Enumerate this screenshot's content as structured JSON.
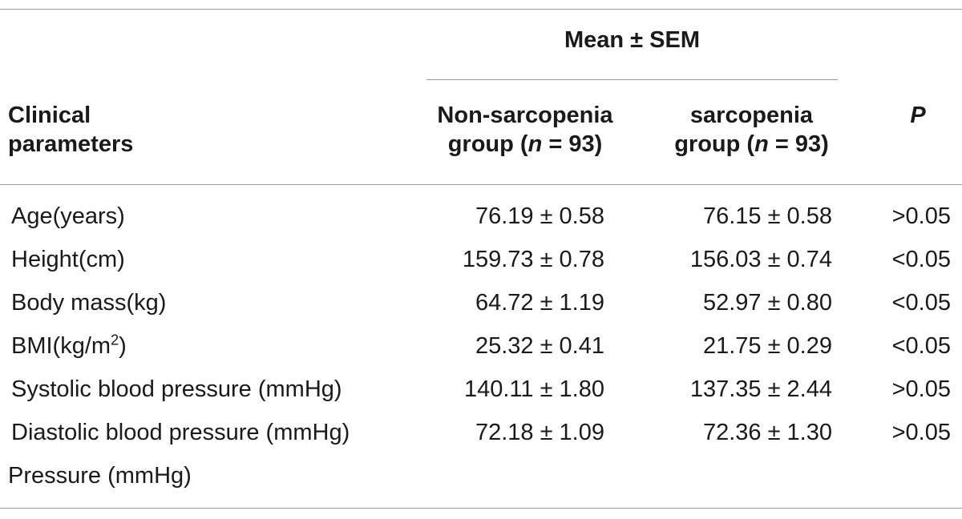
{
  "header": {
    "span_label": "Mean ± SEM",
    "clinical_line1": "Clinical",
    "clinical_line2": "parameters",
    "non_sarc_line1": "Non-sarcopenia",
    "non_sarc_line2_pre": "group (",
    "non_sarc_n": "n",
    "non_sarc_line2_post": " = 93)",
    "sarc_line1": "sarcopenia",
    "sarc_line2_pre": "group (",
    "sarc_n": "n",
    "sarc_line2_post": " = 93)",
    "p_label": "P"
  },
  "rows": [
    {
      "label": "Age(years)",
      "non_sarcopenia": "76.19 ± 0.58",
      "sarcopenia": "76.15 ± 0.58",
      "p": ">0.05"
    },
    {
      "label": "Height(cm)",
      "non_sarcopenia": "159.73 ± 0.78",
      "sarcopenia": "156.03 ± 0.74",
      "p": "<0.05"
    },
    {
      "label": "Body mass(kg)",
      "non_sarcopenia": "64.72 ± 1.19",
      "sarcopenia": "52.97 ± 0.80",
      "p": "<0.05"
    },
    {
      "label_pre": "BMI(kg/m",
      "label_sup": "2",
      "label_post": ")",
      "non_sarcopenia": "25.32 ± 0.41",
      "sarcopenia": "21.75 ± 0.29",
      "p": "<0.05"
    },
    {
      "label": "Systolic blood pressure (mmHg)",
      "non_sarcopenia": "140.11 ± 1.80",
      "sarcopenia": "137.35 ± 2.44",
      "p": ">0.05"
    },
    {
      "label": "Diastolic blood pressure (mmHg)",
      "non_sarcopenia": "72.18 ± 1.09",
      "sarcopenia": "72.36 ± 1.30",
      "p": ">0.05"
    }
  ],
  "continuation": "Pressure (mmHg)"
}
